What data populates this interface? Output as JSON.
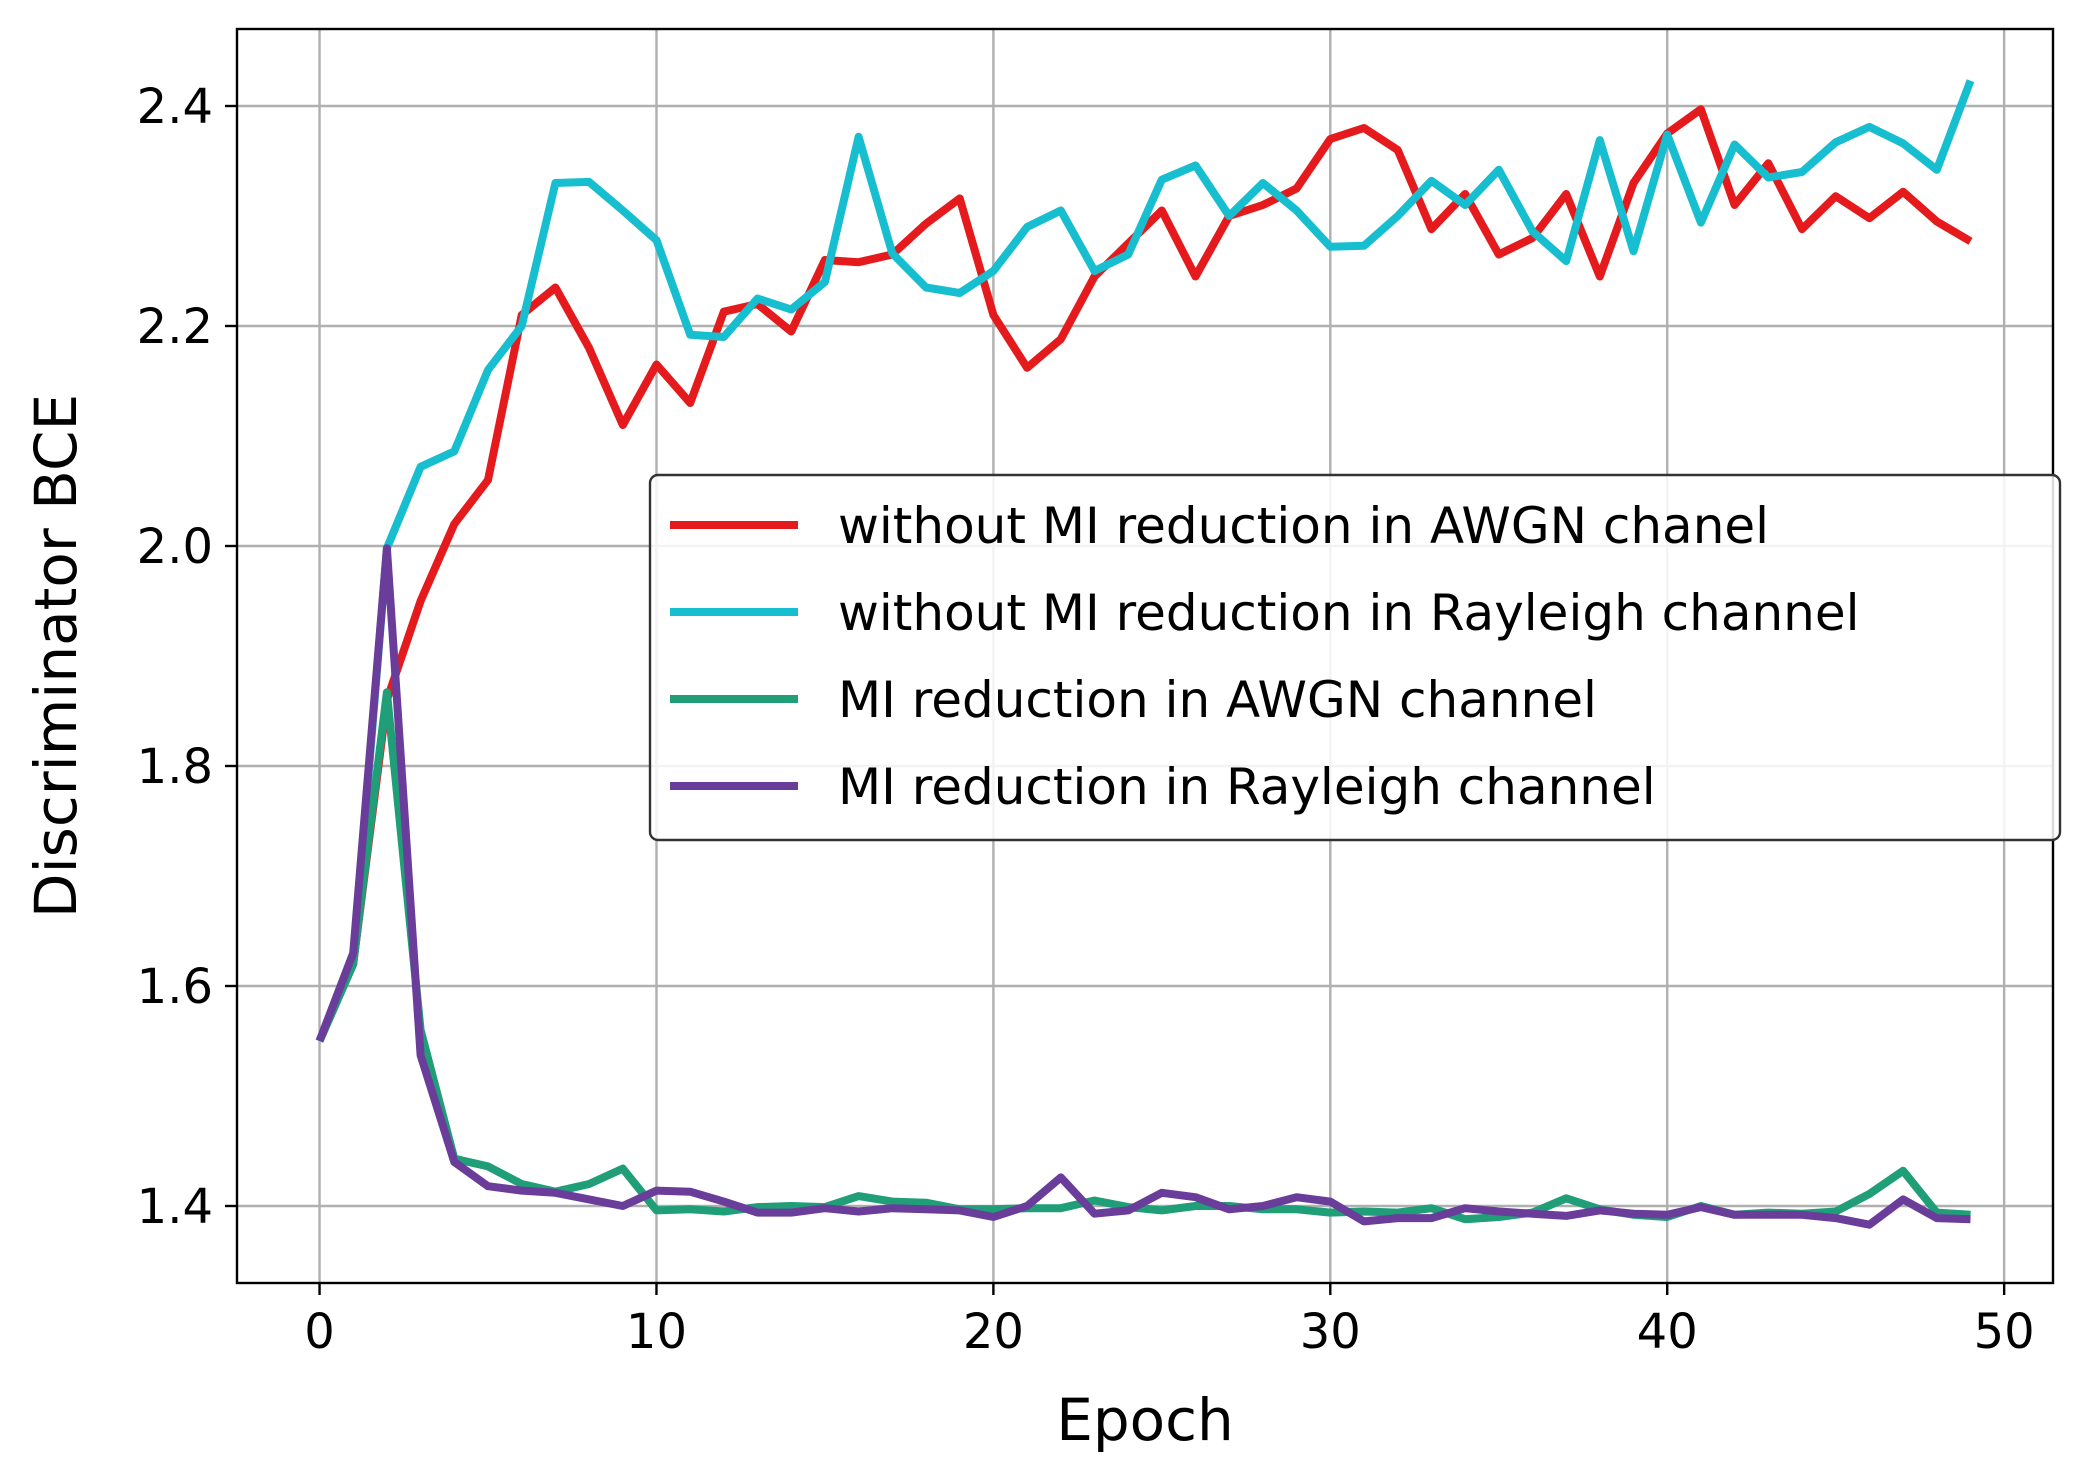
{
  "chart_data": {
    "type": "line",
    "title": "",
    "xlabel": "Epoch",
    "ylabel": "Discriminator BCE",
    "xlim": [
      -2.45,
      51.45
    ],
    "ylim": [
      1.33,
      2.47
    ],
    "xticks": [
      0,
      10,
      20,
      30,
      40,
      50
    ],
    "xtick_labels": [
      "0",
      "10",
      "20",
      "30",
      "40",
      "50"
    ],
    "yticks": [
      1.4,
      1.6,
      1.8,
      2.0,
      2.2,
      2.4
    ],
    "ytick_labels": [
      "1.4",
      "1.6",
      "1.8",
      "2.0",
      "2.2",
      "2.4"
    ],
    "grid": true,
    "legend_position": "center-right",
    "x": [
      0,
      1,
      2,
      3,
      4,
      5,
      6,
      7,
      8,
      9,
      10,
      11,
      12,
      13,
      14,
      15,
      16,
      17,
      18,
      19,
      20,
      21,
      22,
      23,
      24,
      25,
      26,
      27,
      28,
      29,
      30,
      31,
      32,
      33,
      34,
      35,
      36,
      37,
      38,
      39,
      40,
      41,
      42,
      43,
      44,
      45,
      46,
      47,
      48,
      49
    ],
    "series": [
      {
        "name": "without MI reduction in AWGN chanel",
        "color": "#e41a1c",
        "values": [
          1.55,
          1.62,
          1.86,
          1.95,
          2.02,
          2.06,
          2.21,
          2.235,
          2.18,
          2.11,
          2.165,
          2.13,
          2.213,
          2.22,
          2.195,
          2.26,
          2.258,
          2.265,
          2.293,
          2.316,
          2.21,
          2.162,
          2.188,
          2.245,
          2.275,
          2.305,
          2.245,
          2.3,
          2.31,
          2.325,
          2.37,
          2.38,
          2.36,
          2.288,
          2.32,
          2.265,
          2.28,
          2.32,
          2.245,
          2.33,
          2.375,
          2.397,
          2.31,
          2.348,
          2.288,
          2.318,
          2.298,
          2.322,
          2.295,
          2.277
        ]
      },
      {
        "name": "without MI reduction in Rayleigh channel",
        "color": "#17becf",
        "values": [
          1.55,
          1.62,
          1.998,
          2.072,
          2.086,
          2.16,
          2.2,
          2.33,
          2.331,
          2.305,
          2.278,
          2.192,
          2.19,
          2.225,
          2.215,
          2.24,
          2.372,
          2.266,
          2.235,
          2.23,
          2.25,
          2.29,
          2.305,
          2.25,
          2.265,
          2.333,
          2.346,
          2.3,
          2.33,
          2.305,
          2.272,
          2.273,
          2.3,
          2.332,
          2.31,
          2.342,
          2.286,
          2.259,
          2.369,
          2.268,
          2.374,
          2.294,
          2.365,
          2.335,
          2.34,
          2.367,
          2.381,
          2.366,
          2.342,
          2.423
        ]
      },
      {
        "name": "MI reduction in AWGN channel",
        "color": "#1f9e78",
        "values": [
          1.55,
          1.62,
          1.867,
          1.56,
          1.443,
          1.436,
          1.42,
          1.413,
          1.42,
          1.434,
          1.396,
          1.397,
          1.395,
          1.399,
          1.4,
          1.399,
          1.409,
          1.404,
          1.403,
          1.397,
          1.397,
          1.398,
          1.398,
          1.405,
          1.399,
          1.396,
          1.4,
          1.4,
          1.397,
          1.397,
          1.394,
          1.395,
          1.394,
          1.398,
          1.388,
          1.39,
          1.394,
          1.407,
          1.397,
          1.392,
          1.39,
          1.4,
          1.392,
          1.394,
          1.393,
          1.395,
          1.411,
          1.432,
          1.394,
          1.392
        ]
      },
      {
        "name": "MI reduction in Rayleigh channel",
        "color": "#6a3d9a",
        "values": [
          1.55,
          1.63,
          1.998,
          1.537,
          1.44,
          1.418,
          1.414,
          1.412,
          1.406,
          1.4,
          1.414,
          1.413,
          1.404,
          1.394,
          1.394,
          1.398,
          1.395,
          1.398,
          1.397,
          1.396,
          1.39,
          1.4,
          1.426,
          1.393,
          1.396,
          1.412,
          1.408,
          1.397,
          1.4,
          1.408,
          1.404,
          1.386,
          1.389,
          1.389,
          1.398,
          1.395,
          1.393,
          1.391,
          1.396,
          1.393,
          1.392,
          1.399,
          1.392,
          1.392,
          1.392,
          1.389,
          1.383,
          1.406,
          1.389,
          1.388
        ]
      }
    ]
  }
}
